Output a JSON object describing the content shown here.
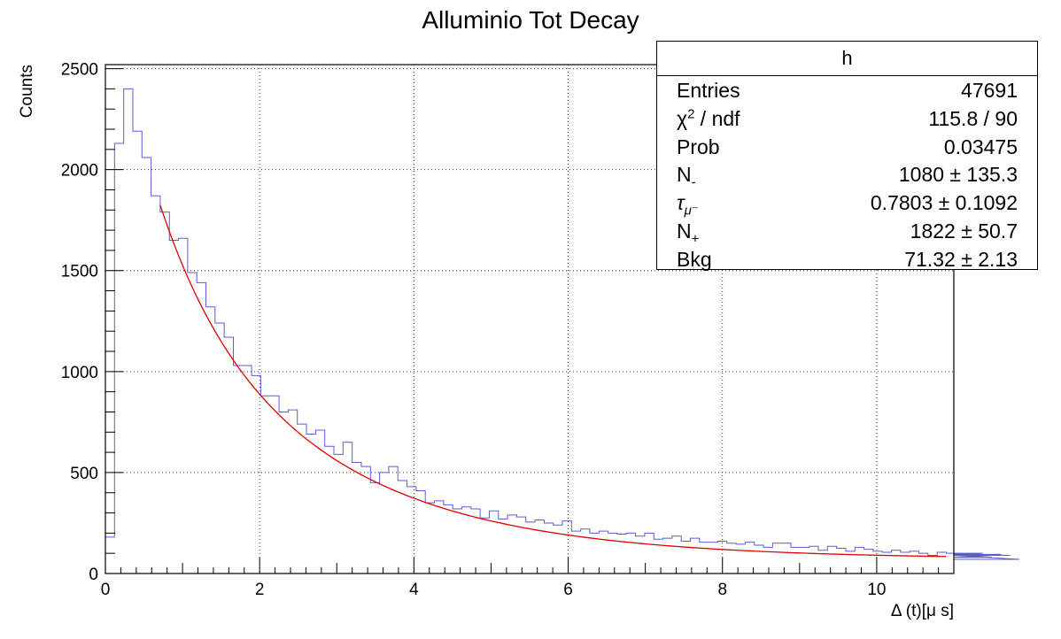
{
  "colors": {
    "histogram": "#5b5bd6",
    "fit": "#e00000",
    "axis": "#000000",
    "grid": "#333333"
  },
  "chart_data": {
    "type": "line",
    "title": "Alluminio Tot Decay",
    "xlabel": "Δ (t)[μ s]",
    "ylabel": "Counts",
    "xlim": [
      0,
      11
    ],
    "ylim": [
      0,
      2520
    ],
    "xticks": [
      0,
      2,
      4,
      6,
      8,
      10
    ],
    "yticks": [
      0,
      500,
      1000,
      1500,
      2000,
      2500
    ],
    "grid": true,
    "legend": "top-right",
    "bin_width": 0.1185,
    "series": [
      {
        "kind": "histogram",
        "values": [
          180,
          2130,
          2400,
          2190,
          2060,
          1870,
          1790,
          1650,
          1660,
          1490,
          1440,
          1320,
          1240,
          1170,
          1030,
          1030,
          980,
          880,
          880,
          800,
          810,
          740,
          690,
          710,
          630,
          590,
          650,
          550,
          530,
          450,
          500,
          530,
          460,
          430,
          410,
          350,
          360,
          340,
          320,
          330,
          320,
          275,
          310,
          270,
          290,
          280,
          255,
          265,
          250,
          240,
          260,
          210,
          220,
          200,
          210,
          200,
          195,
          200,
          185,
          200,
          170,
          175,
          185,
          160,
          175,
          155,
          155,
          160,
          150,
          145,
          155,
          140,
          130,
          150,
          150,
          130,
          130,
          135,
          115,
          135,
          125,
          110,
          130,
          120,
          110,
          105,
          115,
          105,
          110,
          100,
          90,
          105,
          100,
          95,
          90,
          95,
          100,
          80,
          95,
          90,
          70
        ]
      },
      {
        "kind": "fit",
        "model": "N- * exp(-t/tau) + N+ * exp(-t/2.197) + Bkg",
        "x_range": [
          0.71,
          10.9
        ],
        "params": {
          "N_minus": 1080,
          "tau": 0.7803,
          "N_plus": 1822,
          "Bkg": 71.32
        }
      }
    ]
  },
  "stats": {
    "title": "h",
    "rows": [
      {
        "label": "Entries",
        "value": "47691"
      },
      {
        "label": "χ",
        "label_sup": "2",
        "label_rest": " / ndf",
        "value": "115.8 / 90"
      },
      {
        "label": "Prob",
        "value": "0.03475"
      },
      {
        "label": "N",
        "label_sub": "-",
        "value": "1080 ± 135.3"
      },
      {
        "label": "τ",
        "label_sub": "μ⁻",
        "value": "0.7803 ± 0.1092"
      },
      {
        "label": "N",
        "label_sub": "+",
        "value": "1822 ± 50.7"
      },
      {
        "label": "Bkg",
        "value": "71.32 ± 2.13"
      }
    ]
  }
}
